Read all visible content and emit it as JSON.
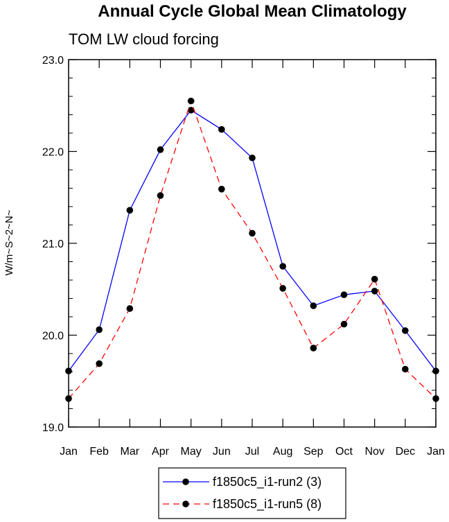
{
  "chart_data": {
    "type": "line",
    "title": "Annual Cycle Global Mean Climatology",
    "subtitle": "TOM LW cloud forcing",
    "xlabel": "",
    "ylabel": "W/m~S~2~N~",
    "categories": [
      "Jan",
      "Feb",
      "Mar",
      "Apr",
      "May",
      "Jun",
      "Jul",
      "Aug",
      "Sep",
      "Oct",
      "Nov",
      "Dec",
      "Jan"
    ],
    "ylim": [
      19.0,
      23.0
    ],
    "yticks": [
      19.0,
      20.0,
      21.0,
      22.0,
      23.0
    ],
    "ytick_labels": [
      "19.0",
      "20.0",
      "21.0",
      "22.0",
      "23.0"
    ],
    "grid": false,
    "legend_position": "bottom-center",
    "series": [
      {
        "name": "f1850c5_i1-run2 (3)",
        "color": "#0000ff",
        "dash": "solid",
        "values": [
          19.61,
          20.06,
          21.36,
          22.02,
          22.45,
          22.24,
          21.93,
          20.75,
          20.32,
          20.44,
          20.48,
          20.05,
          19.61
        ]
      },
      {
        "name": "f1850c5_i1-run5 (8)",
        "color": "#ff0000",
        "dash": "dashed",
        "values": [
          19.31,
          19.69,
          20.29,
          21.52,
          22.55,
          21.59,
          21.11,
          20.51,
          19.86,
          20.12,
          20.61,
          19.63,
          19.31
        ]
      }
    ]
  }
}
